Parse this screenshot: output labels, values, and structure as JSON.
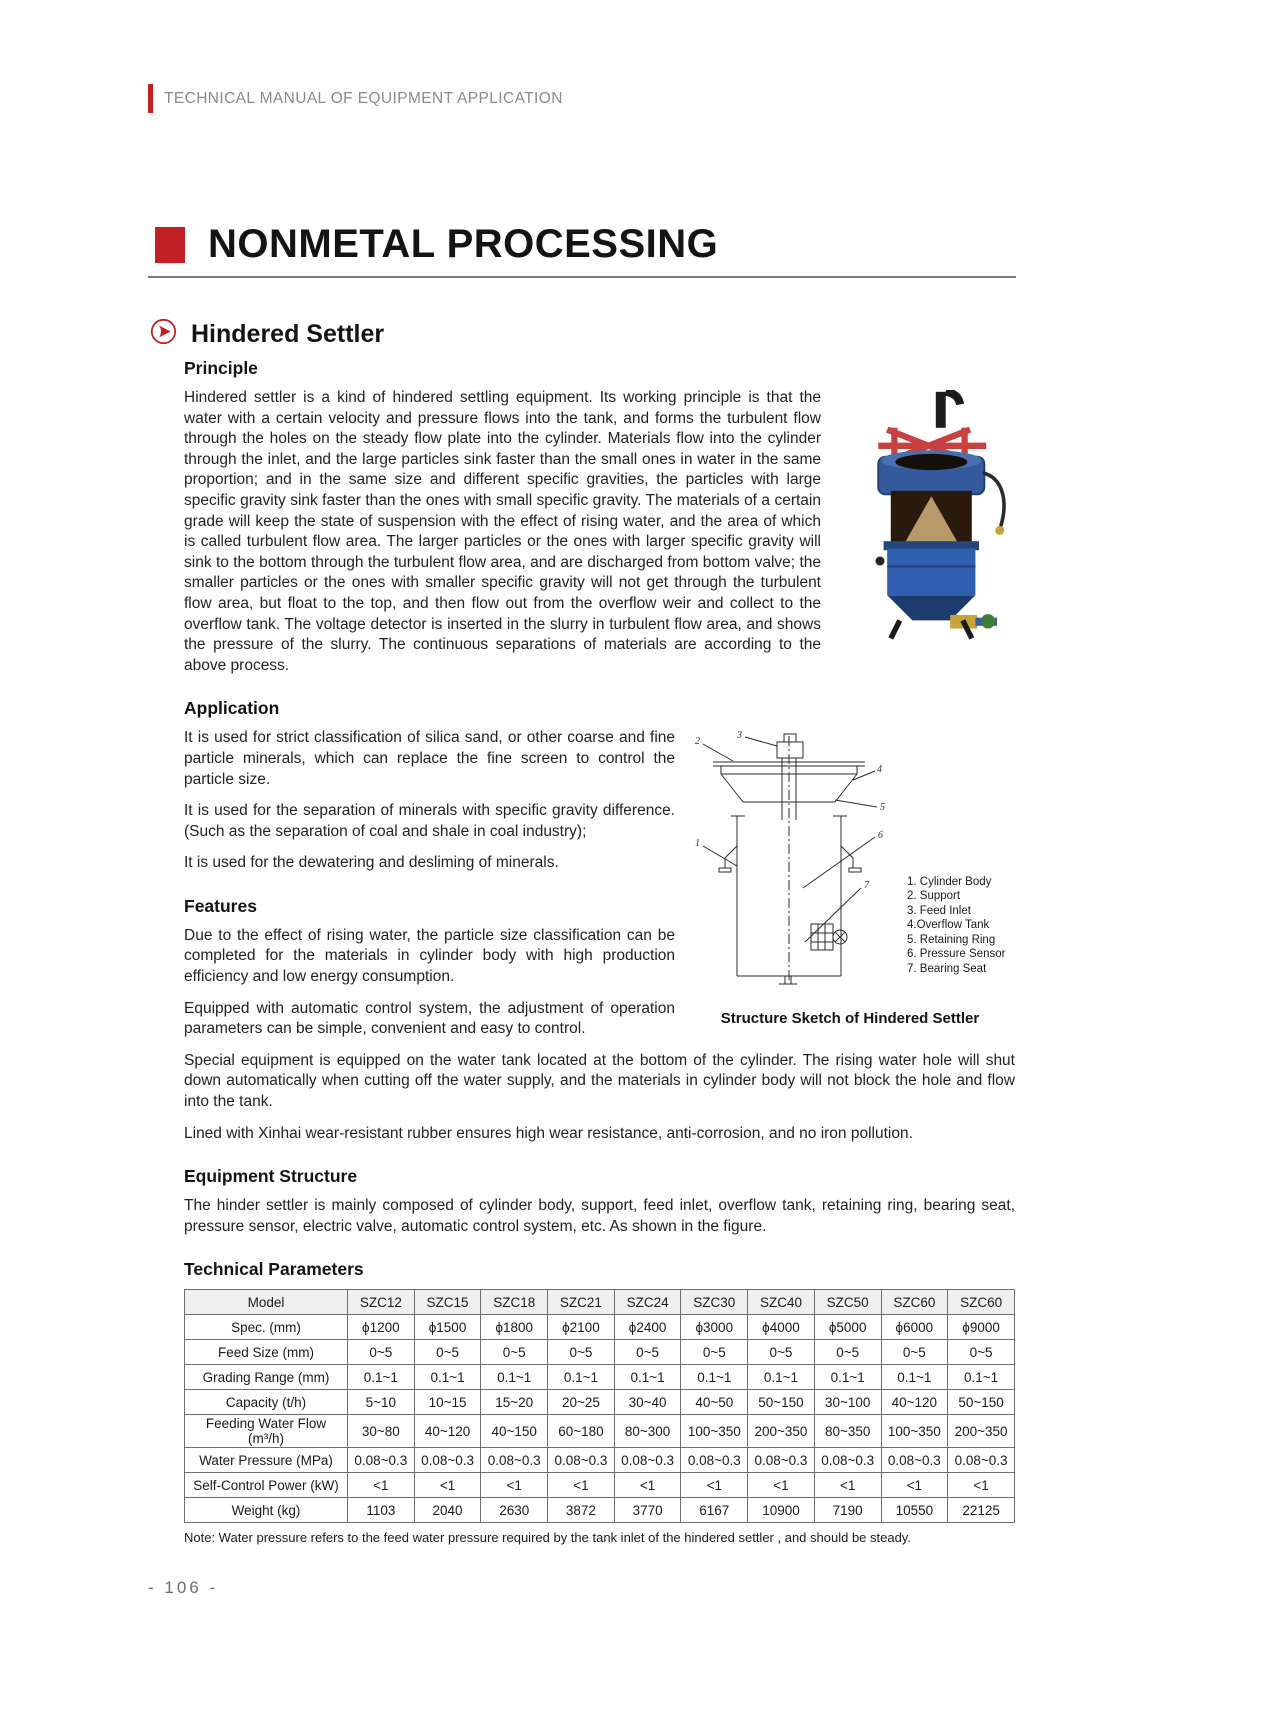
{
  "page": {
    "header_text": "TECHNICAL MANUAL OF EQUIPMENT APPLICATION",
    "title": "NONMETAL PROCESSING",
    "footer_page_number": "- 106 -",
    "accent_color": "#c32026"
  },
  "article": {
    "heading": "Hindered Settler",
    "principle": {
      "heading": "Principle",
      "body": "Hindered settler is a kind of hindered settling equipment. Its working principle is that the water with a certain velocity and pressure flows into the tank, and forms the turbulent flow through the holes on the steady flow plate into the cylinder. Materials flow into the cylinder through the inlet, and the large particles sink faster than the small ones in water in the same proportion; and in the same size and different specific gravities, the particles with large specific gravity sink faster than the ones with small specific gravity. The materials of a certain grade will keep the state of suspension with the effect of rising water, and the area of which is called turbulent flow area. The larger particles or the ones with larger specific gravity will sink to the bottom through the turbulent flow area, and are discharged from bottom valve; the smaller particles or the ones with smaller specific gravity will not get through the turbulent flow area, but float to the top, and then flow out from the overflow weir and collect to the overflow tank. The voltage detector is inserted in the slurry in turbulent flow area, and shows the pressure of the slurry. The continuous separations of materials are according to the above process."
    },
    "application": {
      "heading": "Application",
      "paragraphs": [
        "It is used for strict classification of silica sand, or other coarse and fine particle minerals, which can replace the fine screen to control the particle size.",
        "It is used for the separation of minerals with specific gravity difference. (Such as the separation of coal and shale in coal industry);",
        "It is used for the dewatering and desliming of minerals."
      ]
    },
    "features": {
      "heading": "Features",
      "paragraphs": [
        "Due to the effect of rising water, the particle size classification can be completed for the materials in cylinder body with high production efficiency and low energy consumption.",
        "Equipped with automatic control system, the adjustment of operation parameters can be simple, convenient and easy to control.",
        "Special equipment is equipped on the water tank located at the bottom of the cylinder. The rising water hole will shut down automatically when cutting off the water supply, and the materials in cylinder body will not block the hole and flow into the tank.",
        "Lined with Xinhai wear-resistant rubber ensures high wear resistance, anti-corrosion, and no iron pollution."
      ]
    },
    "equipment_structure": {
      "heading": "Equipment Structure",
      "body": "The hinder settler is mainly composed of cylinder body, support, feed inlet, overflow tank, retaining ring, bearing seat, pressure sensor, electric valve, automatic control system, etc. As shown in the figure."
    },
    "technical_parameters_heading": "Technical Parameters"
  },
  "structure_figure": {
    "caption": "Structure Sketch of Hindered Settler",
    "parts": [
      "1. Cylinder Body",
      "2. Support",
      "3. Feed Inlet",
      "4.Overflow Tank",
      "5. Retaining Ring",
      "6. Pressure Sensor",
      "7. Bearing Seat"
    ]
  },
  "table": {
    "rows": [
      {
        "label": "Model",
        "values": [
          "SZC12",
          "SZC15",
          "SZC18",
          "SZC21",
          "SZC24",
          "SZC30",
          "SZC40",
          "SZC50",
          "SZC60",
          "SZC60"
        ]
      },
      {
        "label": "Spec. (mm)",
        "values": [
          "ϕ1200",
          "ϕ1500",
          "ϕ1800",
          "ϕ2100",
          "ϕ2400",
          "ϕ3000",
          "ϕ4000",
          "ϕ5000",
          "ϕ6000",
          "ϕ9000"
        ]
      },
      {
        "label": "Feed Size (mm)",
        "values": [
          "0~5",
          "0~5",
          "0~5",
          "0~5",
          "0~5",
          "0~5",
          "0~5",
          "0~5",
          "0~5",
          "0~5"
        ]
      },
      {
        "label": "Grading Range (mm)",
        "values": [
          "0.1~1",
          "0.1~1",
          "0.1~1",
          "0.1~1",
          "0.1~1",
          "0.1~1",
          "0.1~1",
          "0.1~1",
          "0.1~1",
          "0.1~1"
        ]
      },
      {
        "label": "Capacity (t/h)",
        "values": [
          "5~10",
          "10~15",
          "15~20",
          "20~25",
          "30~40",
          "40~50",
          "50~150",
          "30~100",
          "40~120",
          "50~150"
        ]
      },
      {
        "label": "Feeding Water Flow (m³/h)",
        "values": [
          "30~80",
          "40~120",
          "40~150",
          "60~180",
          "80~300",
          "100~350",
          "200~350",
          "80~350",
          "100~350",
          "200~350"
        ]
      },
      {
        "label": "Water Pressure (MPa)",
        "values": [
          "0.08~0.3",
          "0.08~0.3",
          "0.08~0.3",
          "0.08~0.3",
          "0.08~0.3",
          "0.08~0.3",
          "0.08~0.3",
          "0.08~0.3",
          "0.08~0.3",
          "0.08~0.3"
        ]
      },
      {
        "label": "Self-Control Power (kW)",
        "values": [
          "<1",
          "<1",
          "<1",
          "<1",
          "<1",
          "<1",
          "<1",
          "<1",
          "<1",
          "<1"
        ]
      },
      {
        "label": "Weight (kg)",
        "values": [
          "1103",
          "2040",
          "2630",
          "3872",
          "3770",
          "6167",
          "10900",
          "7190",
          "10550",
          "22125"
        ]
      }
    ],
    "note": "Note: Water pressure refers to the feed water pressure required by the tank inlet of the hindered settler , and should be steady."
  }
}
